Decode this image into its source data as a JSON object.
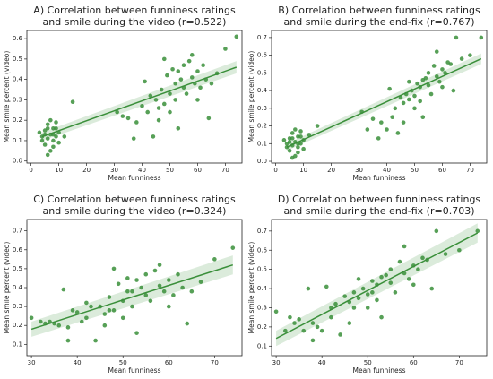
{
  "chart_data": [
    {
      "type": "scatter",
      "title_lines": [
        "A) Correlation between funniness ratings",
        "and smile during the video (r=0.522)"
      ],
      "xlabel": "Mean funniness",
      "ylabel": "Mean smile percent (video)",
      "color": "#3a8f3a",
      "xlim": [
        -1.5,
        76
      ],
      "xticks": [
        0,
        10,
        20,
        30,
        40,
        50,
        60,
        70
      ],
      "ylim": [
        -0.01,
        0.64
      ],
      "yticks": [
        {
          "value": 0,
          "label": "0.0"
        },
        0.1,
        0.2,
        0.3,
        0.4,
        0.5,
        0.6
      ],
      "x": [
        4,
        5,
        5,
        6,
        6,
        7,
        7,
        8,
        8,
        9,
        9,
        10,
        4,
        6,
        7,
        8,
        5,
        10,
        3,
        9,
        12,
        15,
        6,
        8,
        31,
        33,
        35,
        37,
        38,
        40,
        41,
        42,
        43,
        44,
        45,
        46,
        47,
        48,
        49,
        50,
        50,
        51,
        52,
        52,
        53,
        54,
        55,
        55,
        56,
        57,
        58,
        59,
        60,
        60,
        61,
        62,
        63,
        64,
        65,
        67,
        70,
        74,
        48,
        53,
        46,
        58
      ],
      "y": [
        0.12,
        0.15,
        0.08,
        0.18,
        0.11,
        0.13,
        0.05,
        0.16,
        0.1,
        0.19,
        0.12,
        0.14,
        0.1,
        0.03,
        0.2,
        0.07,
        0.13,
        0.09,
        0.14,
        0.16,
        0.12,
        0.29,
        0.16,
        0.13,
        0.24,
        0.22,
        0.21,
        0.11,
        0.19,
        0.27,
        0.39,
        0.24,
        0.32,
        0.12,
        0.3,
        0.2,
        0.35,
        0.28,
        0.42,
        0.33,
        0.24,
        0.45,
        0.38,
        0.3,
        0.16,
        0.4,
        0.36,
        0.47,
        0.33,
        0.49,
        0.41,
        0.38,
        0.44,
        0.3,
        0.36,
        0.47,
        0.4,
        0.21,
        0.38,
        0.43,
        0.55,
        0.61,
        0.5,
        0.44,
        0.26,
        0.52
      ],
      "fit_line": {
        "x": [
          4,
          74
        ],
        "y": [
          0.12,
          0.46
        ],
        "ci_lower": [
          0.1,
          0.43
        ],
        "ci_upper": [
          0.14,
          0.49
        ]
      }
    },
    {
      "type": "scatter",
      "title_lines": [
        "B) Correlation between funniness ratings",
        "and smile during the end-fix (r=0.767)"
      ],
      "xlabel": "Mean funniness",
      "ylabel": "Mean smile percent (video)",
      "color": "#3a8f3a",
      "xlim": [
        -1.5,
        76
      ],
      "xticks": [
        0,
        10,
        20,
        30,
        40,
        50,
        60,
        70
      ],
      "ylim": [
        -0.01,
        0.74
      ],
      "yticks": [
        {
          "value": 0,
          "label": "0.0"
        },
        0.1,
        0.2,
        0.3,
        0.4,
        0.5,
        0.6,
        0.7
      ],
      "x": [
        4,
        5,
        5,
        6,
        6,
        7,
        7,
        8,
        8,
        9,
        9,
        10,
        4,
        6,
        7,
        8,
        5,
        10,
        3,
        9,
        12,
        15,
        6,
        8,
        31,
        33,
        35,
        37,
        38,
        40,
        41,
        42,
        43,
        44,
        45,
        46,
        47,
        48,
        49,
        50,
        50,
        51,
        52,
        52,
        53,
        54,
        55,
        55,
        56,
        57,
        58,
        59,
        60,
        60,
        61,
        62,
        63,
        64,
        65,
        67,
        70,
        74,
        48,
        53,
        46,
        58
      ],
      "y": [
        0.1,
        0.13,
        0.06,
        0.16,
        0.09,
        0.11,
        0.03,
        0.14,
        0.08,
        0.17,
        0.1,
        0.12,
        0.08,
        0.02,
        0.18,
        0.05,
        0.11,
        0.07,
        0.12,
        0.14,
        0.15,
        0.2,
        0.13,
        0.1,
        0.28,
        0.18,
        0.24,
        0.13,
        0.22,
        0.18,
        0.41,
        0.25,
        0.3,
        0.16,
        0.36,
        0.22,
        0.38,
        0.35,
        0.4,
        0.37,
        0.3,
        0.44,
        0.42,
        0.34,
        0.25,
        0.47,
        0.43,
        0.5,
        0.38,
        0.54,
        0.48,
        0.45,
        0.52,
        0.42,
        0.5,
        0.56,
        0.55,
        0.4,
        0.7,
        0.58,
        0.6,
        0.7,
        0.45,
        0.46,
        0.33,
        0.62
      ],
      "fit_line": {
        "x": [
          4,
          74
        ],
        "y": [
          0.08,
          0.58
        ],
        "ci_lower": [
          0.06,
          0.55
        ],
        "ci_upper": [
          0.1,
          0.61
        ]
      }
    },
    {
      "type": "scatter",
      "title_lines": [
        "C) Correlation between funniness ratings",
        "and smile during the video (r=0.324)"
      ],
      "xlabel": "Mean funniness",
      "ylabel": "Mean smile percent (video)",
      "color": "#3a8f3a",
      "xlim": [
        29,
        76
      ],
      "xticks": [
        30,
        40,
        50,
        60,
        70
      ],
      "ylim": [
        0.04,
        0.76
      ],
      "yticks": [
        0.1,
        0.2,
        0.3,
        0.4,
        0.5,
        0.6,
        0.7
      ],
      "x": [
        30,
        32,
        33,
        34,
        35,
        36,
        37,
        38,
        38,
        39,
        40,
        41,
        42,
        42,
        43,
        44,
        45,
        46,
        47,
        47,
        48,
        49,
        50,
        50,
        51,
        51,
        52,
        52,
        53,
        54,
        55,
        55,
        56,
        57,
        58,
        59,
        60,
        60,
        61,
        62,
        63,
        64,
        65,
        67,
        70,
        74,
        48,
        53,
        46,
        58
      ],
      "y": [
        0.24,
        0.22,
        0.21,
        0.22,
        0.21,
        0.2,
        0.39,
        0.12,
        0.19,
        0.28,
        0.27,
        0.22,
        0.24,
        0.32,
        0.3,
        0.12,
        0.3,
        0.2,
        0.35,
        0.28,
        0.28,
        0.42,
        0.33,
        0.24,
        0.45,
        0.38,
        0.38,
        0.3,
        0.16,
        0.4,
        0.36,
        0.47,
        0.33,
        0.49,
        0.41,
        0.38,
        0.44,
        0.3,
        0.36,
        0.47,
        0.4,
        0.21,
        0.38,
        0.43,
        0.55,
        0.61,
        0.5,
        0.44,
        0.26,
        0.52
      ],
      "fit_line": {
        "x": [
          30,
          74
        ],
        "y": [
          0.18,
          0.52
        ],
        "ci_lower": [
          0.14,
          0.47
        ],
        "ci_upper": [
          0.22,
          0.57
        ]
      }
    },
    {
      "type": "scatter",
      "title_lines": [
        "D) Correlation between funniness ratings",
        "and smile during the end-fix (r=0.703)"
      ],
      "xlabel": "Mean funniness",
      "ylabel": "Mean smile percent (video)",
      "color": "#3a8f3a",
      "xlim": [
        29,
        76
      ],
      "xticks": [
        30,
        40,
        50,
        60,
        70
      ],
      "ylim": [
        0.05,
        0.76
      ],
      "yticks": [
        0.1,
        0.2,
        0.3,
        0.4,
        0.5,
        0.6,
        0.7
      ],
      "x": [
        30,
        32,
        33,
        34,
        35,
        36,
        37,
        38,
        38,
        39,
        40,
        41,
        42,
        42,
        43,
        44,
        45,
        46,
        47,
        47,
        48,
        49,
        50,
        50,
        51,
        51,
        52,
        52,
        53,
        54,
        55,
        55,
        56,
        57,
        58,
        59,
        60,
        60,
        61,
        62,
        63,
        64,
        65,
        67,
        70,
        74,
        48,
        53,
        46,
        58
      ],
      "y": [
        0.28,
        0.18,
        0.25,
        0.22,
        0.24,
        0.18,
        0.4,
        0.13,
        0.22,
        0.2,
        0.18,
        0.41,
        0.25,
        0.3,
        0.32,
        0.16,
        0.36,
        0.22,
        0.38,
        0.3,
        0.35,
        0.4,
        0.37,
        0.3,
        0.44,
        0.38,
        0.42,
        0.34,
        0.25,
        0.47,
        0.43,
        0.5,
        0.38,
        0.54,
        0.48,
        0.45,
        0.52,
        0.42,
        0.5,
        0.56,
        0.55,
        0.4,
        0.7,
        0.58,
        0.6,
        0.7,
        0.45,
        0.46,
        0.33,
        0.62
      ],
      "fit_line": {
        "x": [
          30,
          74
        ],
        "y": [
          0.14,
          0.69
        ],
        "ci_lower": [
          0.1,
          0.64
        ],
        "ci_upper": [
          0.18,
          0.74
        ]
      }
    }
  ]
}
